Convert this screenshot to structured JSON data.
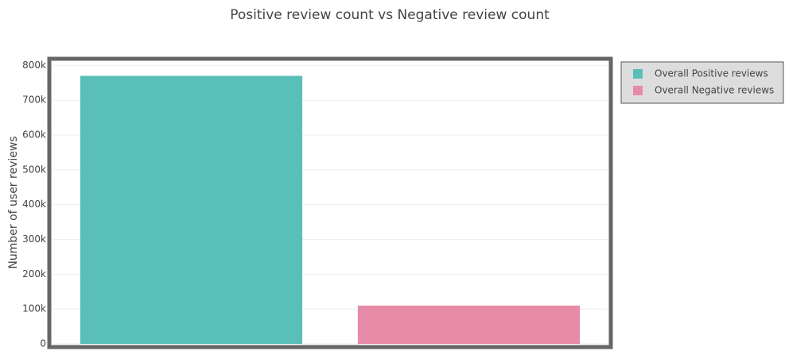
{
  "chart_data": {
    "type": "bar",
    "title": "Positive review count vs Negative review count",
    "y_label": "Number of user reviews",
    "series": [
      {
        "name": "Overall Positive reviews",
        "color": "#5bbfb9",
        "values": [
          770000
        ]
      },
      {
        "name": "Overall Negative reviews",
        "color": "#e68ba8",
        "values": [
          110000
        ]
      }
    ],
    "ylim": [
      0,
      810000
    ],
    "yticks": [
      0,
      {
        "value": 100000,
        "label": "100k"
      },
      {
        "value": 200000,
        "label": "200k"
      },
      {
        "value": 300000,
        "label": "300k"
      },
      {
        "value": 400000,
        "label": "400k"
      },
      {
        "value": 500000,
        "label": "500k"
      },
      {
        "value": 600000,
        "label": "600k"
      },
      {
        "value": 700000,
        "label": "700k"
      },
      {
        "value": 800000,
        "label": "800k"
      }
    ],
    "grid": true,
    "legend": "right"
  }
}
